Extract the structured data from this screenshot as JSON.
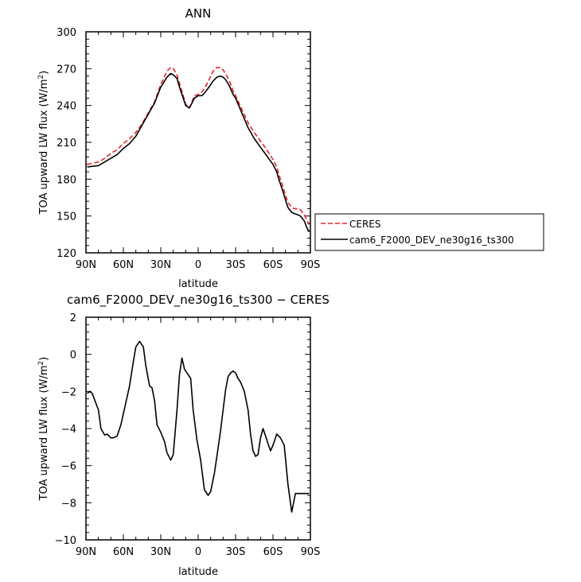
{
  "chart_data": [
    {
      "type": "line",
      "title": "ANN",
      "xlabel": "latitude",
      "ylabel_main": "TOA upward LW flux (W/m",
      "ylabel_sup": "2",
      "ylabel_close": ")",
      "xlim": [
        90,
        -90
      ],
      "ylim": [
        120,
        300
      ],
      "x_ticks": [
        90,
        60,
        30,
        0,
        -30,
        -60,
        -90
      ],
      "x_tick_labels": [
        "90N",
        "60N",
        "30N",
        "0",
        "30S",
        "60S",
        "90S"
      ],
      "y_ticks": [
        120,
        150,
        180,
        210,
        240,
        270,
        300
      ],
      "y_tick_labels": [
        "120",
        "150",
        "180",
        "210",
        "240",
        "270",
        "300"
      ],
      "legend_position": "right",
      "series": [
        {
          "name": "CERES",
          "color": "#e8262c",
          "dash": "dashed",
          "x": [
            89,
            80,
            75,
            70,
            65,
            60,
            55,
            50,
            45,
            40,
            35,
            30,
            25,
            22,
            20,
            17,
            15,
            12,
            10,
            7,
            5,
            3,
            0,
            -3,
            -5,
            -8,
            -10,
            -12,
            -15,
            -18,
            -20,
            -22,
            -25,
            -28,
            -30,
            -35,
            -40,
            -45,
            -50,
            -55,
            -60,
            -63,
            -65,
            -68,
            -70,
            -72,
            -75,
            -77,
            -80,
            -82,
            -85,
            -87,
            -89
          ],
          "y": [
            192,
            194,
            197,
            201,
            204,
            209,
            213,
            218,
            225,
            234,
            243,
            257,
            268,
            271,
            270,
            265,
            258,
            248,
            241,
            238,
            243,
            248,
            249,
            251,
            254,
            259,
            264,
            268,
            271,
            271,
            269,
            266,
            260,
            252,
            248,
            237,
            226,
            218,
            211,
            204,
            196,
            190,
            183,
            174,
            167,
            161,
            157,
            156,
            156,
            155,
            151,
            147,
            143
          ]
        },
        {
          "name": "cam6_F2000_DEV_ne30g16_ts300",
          "color": "#000000",
          "dash": "solid",
          "x": [
            89,
            80,
            75,
            70,
            65,
            60,
            55,
            50,
            45,
            40,
            35,
            30,
            25,
            22,
            20,
            17,
            15,
            12,
            10,
            7,
            5,
            3,
            0,
            -3,
            -5,
            -8,
            -10,
            -12,
            -15,
            -18,
            -20,
            -22,
            -25,
            -28,
            -30,
            -35,
            -40,
            -45,
            -50,
            -55,
            -60,
            -63,
            -65,
            -68,
            -70,
            -72,
            -75,
            -77,
            -80,
            -82,
            -85,
            -87,
            -89
          ],
          "y": [
            190,
            191,
            194,
            197,
            200,
            205,
            209,
            215,
            224,
            233,
            242,
            255,
            263,
            266,
            265,
            262,
            255,
            246,
            240,
            238,
            242,
            246,
            248,
            248,
            250,
            254,
            257,
            260,
            263,
            264,
            263,
            261,
            256,
            249,
            246,
            234,
            222,
            213,
            206,
            199,
            192,
            186,
            179,
            170,
            163,
            157,
            153,
            152,
            151,
            150,
            146,
            141,
            137
          ]
        }
      ]
    },
    {
      "type": "line",
      "title": "cam6_F2000_DEV_ne30g16_ts300 − CERES",
      "xlabel": "latitude",
      "ylabel_main": "TOA upward LW flux (W/m",
      "ylabel_sup": "2",
      "ylabel_close": ")",
      "xlim": [
        90,
        -90
      ],
      "ylim": [
        -10,
        2
      ],
      "x_ticks": [
        90,
        60,
        30,
        0,
        -30,
        -60,
        -90
      ],
      "x_tick_labels": [
        "90N",
        "60N",
        "30N",
        "0",
        "30S",
        "60S",
        "90S"
      ],
      "y_ticks": [
        -10,
        -8,
        -6,
        -4,
        -2,
        0,
        2
      ],
      "y_tick_labels": [
        "−10",
        "−8",
        "−6",
        "−4",
        "−2",
        "0",
        "2"
      ],
      "series": [
        {
          "name": "",
          "color": "#000000",
          "dash": "solid",
          "x": [
            89,
            87,
            85,
            80,
            78,
            75,
            73,
            70,
            68,
            65,
            62,
            60,
            57,
            55,
            52,
            50,
            47,
            44,
            42,
            39,
            37,
            35,
            33,
            30,
            27,
            25,
            22,
            20,
            17,
            15,
            13,
            11,
            8,
            6,
            4,
            1,
            -2,
            -5,
            -8,
            -10,
            -13,
            -15,
            -18,
            -20,
            -22,
            -24,
            -26,
            -28,
            -30,
            -32,
            -34,
            -37,
            -40,
            -42,
            -44,
            -46,
            -48,
            -50,
            -52,
            -54,
            -56,
            -58,
            -60,
            -63,
            -66,
            -69,
            -72,
            -75,
            -78,
            -81,
            -83,
            -85,
            -87,
            -89
          ],
          "y": [
            -2.1,
            -2.0,
            -2.1,
            -3.0,
            -4.0,
            -4.35,
            -4.3,
            -4.5,
            -4.5,
            -4.4,
            -3.8,
            -3.2,
            -2.3,
            -1.7,
            -0.4,
            0.4,
            0.7,
            0.4,
            -0.6,
            -1.7,
            -1.8,
            -2.5,
            -3.8,
            -4.2,
            -4.7,
            -5.3,
            -5.7,
            -5.4,
            -3.0,
            -1.1,
            -0.2,
            -0.8,
            -1.1,
            -1.3,
            -3.0,
            -4.6,
            -5.7,
            -7.3,
            -7.6,
            -7.4,
            -6.4,
            -5.5,
            -4.1,
            -3.0,
            -1.9,
            -1.2,
            -1.0,
            -0.9,
            -1.0,
            -1.3,
            -1.5,
            -2.0,
            -3.0,
            -4.3,
            -5.2,
            -5.5,
            -5.4,
            -4.5,
            -4.0,
            -4.4,
            -4.8,
            -5.2,
            -4.9,
            -4.3,
            -4.5,
            -4.9,
            -7.0,
            -8.5,
            -7.5,
            -7.5,
            -7.5,
            -7.5,
            -7.5,
            -7.5
          ]
        }
      ]
    }
  ]
}
